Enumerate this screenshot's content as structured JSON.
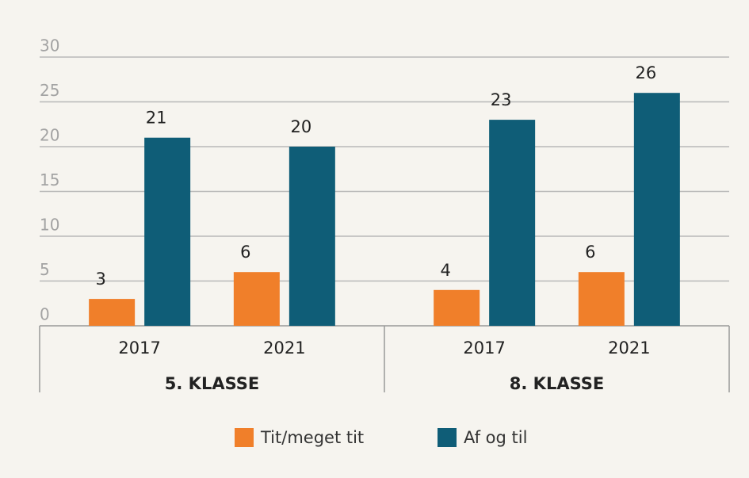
{
  "chart_data": {
    "type": "bar",
    "categories": [
      "2017",
      "2021",
      "2017",
      "2021"
    ],
    "groups": [
      "5. KLASSE",
      "8. KLASSE"
    ],
    "series": [
      {
        "name": "Tit/meget tit",
        "color": "#f07f2a",
        "values": [
          3,
          6,
          4,
          6
        ]
      },
      {
        "name": "Af og til",
        "color": "#0f5d77",
        "values": [
          21,
          20,
          23,
          26
        ]
      }
    ],
    "ylim": [
      0,
      30
    ],
    "yticks": [
      0,
      5,
      10,
      15,
      20,
      25,
      30
    ],
    "grid": true
  }
}
